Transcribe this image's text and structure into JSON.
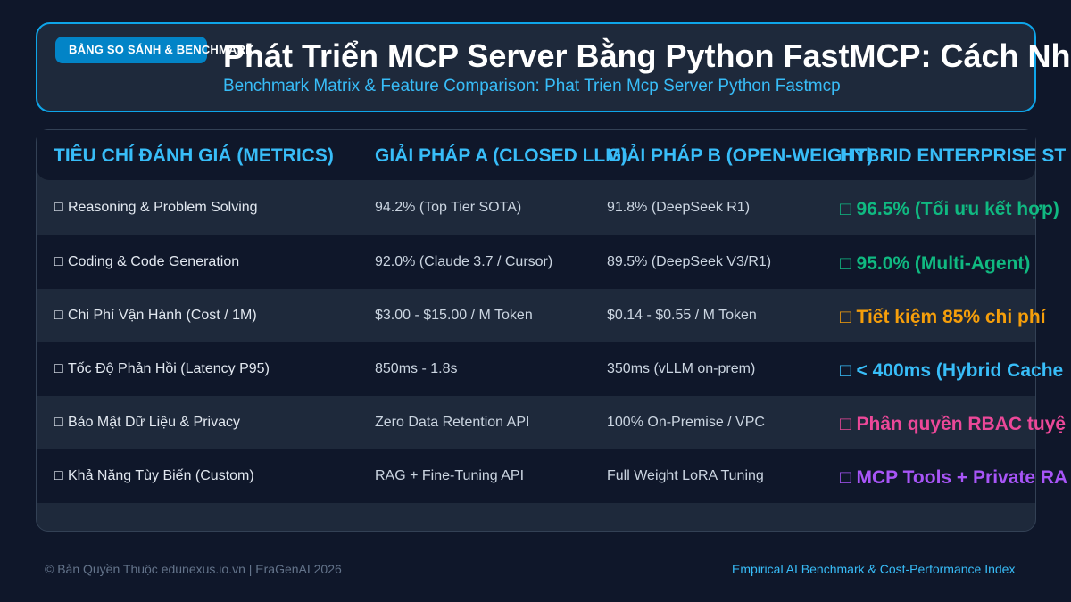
{
  "header": {
    "badge": "BẢNG SO SÁNH & BENCHMARK",
    "title": "Phát Triển MCP Server Bằng Python FastMCP: Cách Nh",
    "subtitle": "Benchmark Matrix & Feature Comparison: Phat Trien Mcp Server Python Fastmcp"
  },
  "table": {
    "columns": [
      "TIÊU CHÍ ĐÁNH GIÁ (METRICS)",
      "GIẢI PHÁP A (CLOSED LLM)",
      "GIẢI PHÁP B (OPEN-WEIGHT)",
      "HYBRID ENTERPRISE ST"
    ],
    "rows": [
      {
        "icon": "□",
        "metric": "Reasoning & Problem Solving",
        "a": "94.2% (Top Tier SOTA)",
        "b": "91.8% (DeepSeek R1)",
        "hybrid": "□ 96.5% (Tối ưu kết hợp)",
        "color": "#10b981"
      },
      {
        "icon": "□",
        "metric": "Coding & Code Generation",
        "a": "92.0% (Claude 3.7 / Cursor)",
        "b": "89.5% (DeepSeek V3/R1)",
        "hybrid": "□ 95.0% (Multi-Agent)",
        "color": "#10b981"
      },
      {
        "icon": "□",
        "metric": "Chi Phí Vận Hành (Cost / 1M)",
        "a": "$3.00 - $15.00 / M Token",
        "b": "$0.14 - $0.55 / M Token",
        "hybrid": "□ Tiết kiệm 85% chi phí",
        "color": "#f59e0b"
      },
      {
        "icon": "□",
        "metric": "Tốc Độ Phản Hồi (Latency P95)",
        "a": "850ms - 1.8s",
        "b": "350ms (vLLM on-prem)",
        "hybrid": "□ < 400ms (Hybrid Cache",
        "color": "#38bdf8"
      },
      {
        "icon": "□",
        "metric": "Bảo Mật Dữ Liệu & Privacy",
        "a": "Zero Data Retention API",
        "b": "100% On-Premise / VPC",
        "hybrid": "□ Phân quyền RBAC tuyệ",
        "color": "#ec4899"
      },
      {
        "icon": "□",
        "metric": "Khả Năng Tùy Biến (Custom)",
        "a": "RAG + Fine-Tuning API",
        "b": "Full Weight LoRA Tuning",
        "hybrid": "□ MCP Tools + Private RA",
        "color": "#a855f7"
      }
    ]
  },
  "footer": {
    "left": "© Bản Quyền Thuộc edunexus.io.vn | EraGenAI 2026",
    "right": "Empirical AI Benchmark & Cost-Performance Index"
  }
}
